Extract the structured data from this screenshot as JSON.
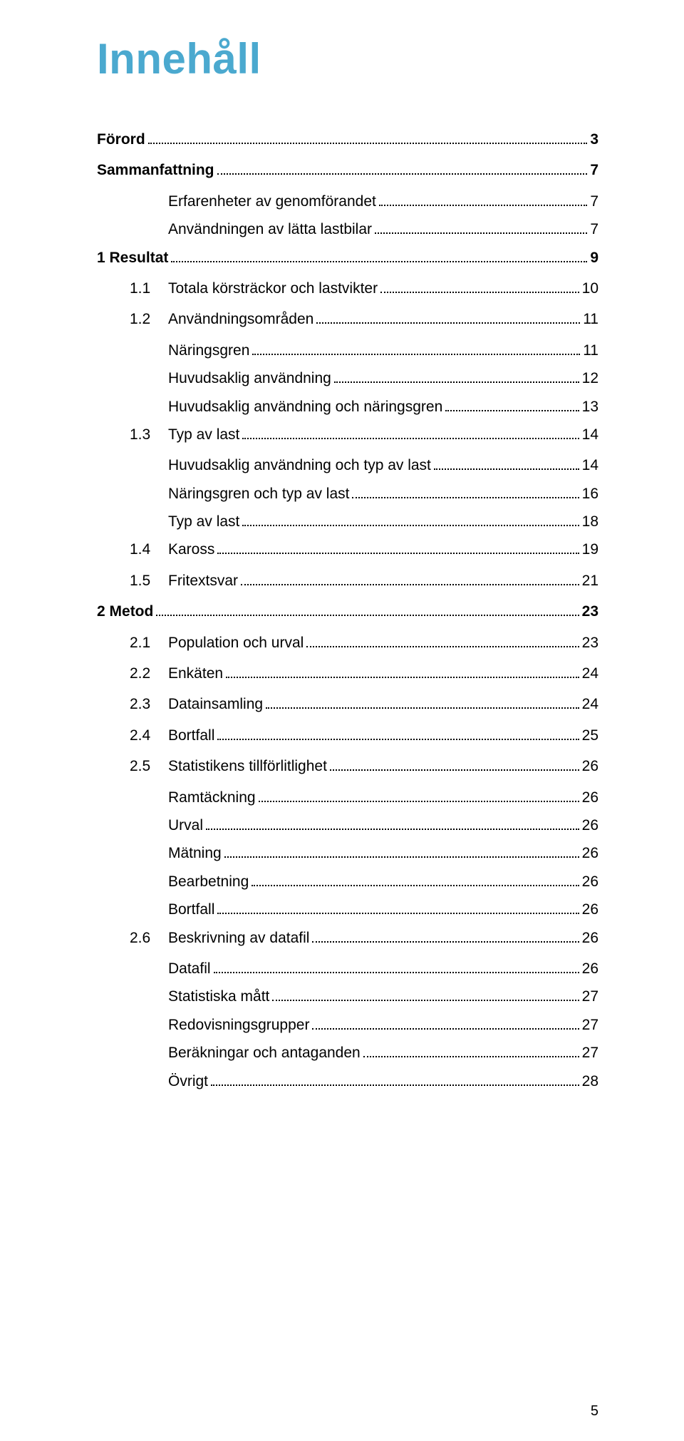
{
  "title": "Innehåll",
  "title_color": "#4ba9cf",
  "background_color": "#ffffff",
  "font_family": "Arial, Helvetica, sans-serif",
  "page_number": "5",
  "toc": [
    {
      "level": 1,
      "num": "",
      "label": "Förord",
      "page": "3"
    },
    {
      "level": 1,
      "num": "",
      "label": "Sammanfattning",
      "page": "7"
    },
    {
      "level": 3,
      "num": "",
      "label": "Erfarenheter av genomförandet",
      "page": "7"
    },
    {
      "level": 3,
      "num": "",
      "label": "Användningen av lätta lastbilar",
      "page": "7"
    },
    {
      "level": 1,
      "num": "1 ",
      "label": "Resultat",
      "page": "9"
    },
    {
      "level": 2,
      "num": "1.1",
      "label": "Totala körsträckor och lastvikter",
      "page": "10"
    },
    {
      "level": 2,
      "num": "1.2",
      "label": "Användningsområden",
      "page": "11"
    },
    {
      "level": 3,
      "num": "",
      "label": "Näringsgren",
      "page": "11"
    },
    {
      "level": 3,
      "num": "",
      "label": "Huvudsaklig användning",
      "page": "12"
    },
    {
      "level": 3,
      "num": "",
      "label": "Huvudsaklig användning och näringsgren",
      "page": "13"
    },
    {
      "level": 2,
      "num": "1.3",
      "label": "Typ av last",
      "page": "14"
    },
    {
      "level": 3,
      "num": "",
      "label": "Huvudsaklig användning och typ av last",
      "page": "14"
    },
    {
      "level": 3,
      "num": "",
      "label": "Näringsgren och typ av last",
      "page": "16"
    },
    {
      "level": 3,
      "num": "",
      "label": "Typ av last",
      "page": "18"
    },
    {
      "level": 2,
      "num": "1.4",
      "label": "Kaross",
      "page": "19"
    },
    {
      "level": 2,
      "num": "1.5",
      "label": "Fritextsvar",
      "page": "21"
    },
    {
      "level": 1,
      "num": "2 ",
      "label": "Metod",
      "page": "23"
    },
    {
      "level": 2,
      "num": "2.1",
      "label": "Population och urval",
      "page": "23"
    },
    {
      "level": 2,
      "num": "2.2",
      "label": "Enkäten",
      "page": "24"
    },
    {
      "level": 2,
      "num": "2.3",
      "label": "Datainsamling",
      "page": "24"
    },
    {
      "level": 2,
      "num": "2.4",
      "label": "Bortfall",
      "page": "25"
    },
    {
      "level": 2,
      "num": "2.5",
      "label": "Statistikens tillförlitlighet",
      "page": "26"
    },
    {
      "level": 3,
      "num": "",
      "label": "Ramtäckning",
      "page": "26"
    },
    {
      "level": 3,
      "num": "",
      "label": "Urval",
      "page": "26"
    },
    {
      "level": 3,
      "num": "",
      "label": "Mätning",
      "page": "26"
    },
    {
      "level": 3,
      "num": "",
      "label": "Bearbetning",
      "page": "26"
    },
    {
      "level": 3,
      "num": "",
      "label": "Bortfall",
      "page": "26"
    },
    {
      "level": 2,
      "num": "2.6",
      "label": "Beskrivning av datafil",
      "page": "26"
    },
    {
      "level": 3,
      "num": "",
      "label": "Datafil",
      "page": "26"
    },
    {
      "level": 3,
      "num": "",
      "label": "Statistiska mått",
      "page": "27"
    },
    {
      "level": 3,
      "num": "",
      "label": "Redovisningsgrupper",
      "page": "27"
    },
    {
      "level": 3,
      "num": "",
      "label": "Beräkningar och antaganden",
      "page": "27"
    },
    {
      "level": 3,
      "num": "",
      "label": "Övrigt",
      "page": "28"
    }
  ]
}
